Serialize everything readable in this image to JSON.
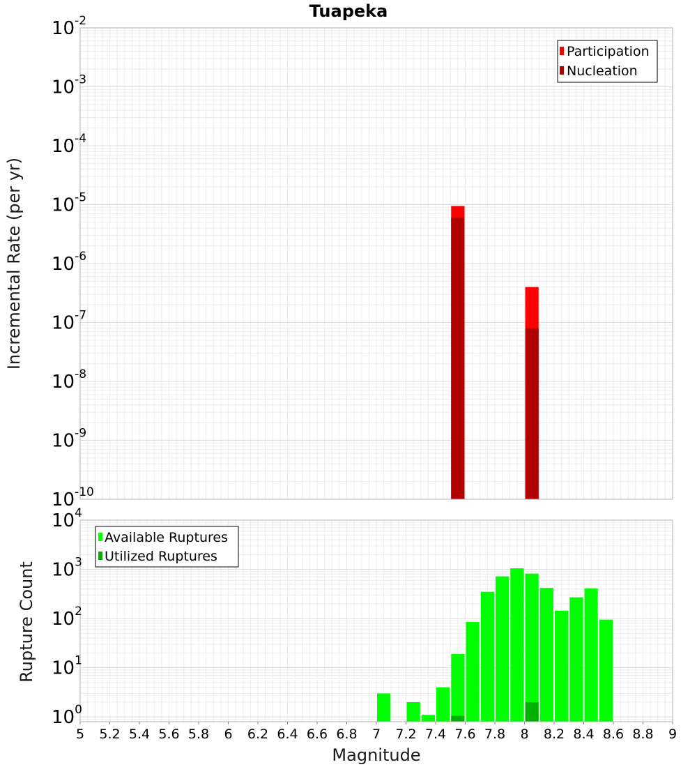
{
  "chart_data": [
    {
      "type": "bar",
      "title": "Tuapeka",
      "xlabel": "",
      "ylabel": "Incremental Rate (per yr)",
      "yscale": "log",
      "ylim": [
        1e-10,
        0.01
      ],
      "xlim": [
        5,
        9
      ],
      "bin_width": 0.1,
      "ytick_labels": [
        {
          "base": "10",
          "exp": "-2"
        },
        {
          "base": "10",
          "exp": "-3"
        },
        {
          "base": "10",
          "exp": "-4"
        },
        {
          "base": "10",
          "exp": "-5"
        },
        {
          "base": "10",
          "exp": "-6"
        },
        {
          "base": "10",
          "exp": "-7"
        },
        {
          "base": "10",
          "exp": "-8"
        },
        {
          "base": "10",
          "exp": "-9"
        },
        {
          "base": "10",
          "exp": "-10"
        }
      ],
      "legend_position": "top-right",
      "grid": true,
      "series": [
        {
          "name": "Participation",
          "color": "#ff0000",
          "x": [
            7.55,
            8.05
          ],
          "values": [
            9.5e-06,
            4e-07
          ]
        },
        {
          "name": "Nucleation",
          "color": "#b00000",
          "x": [
            7.55,
            8.05
          ],
          "values": [
            6e-06,
            8e-08
          ]
        }
      ]
    },
    {
      "type": "bar",
      "title": "",
      "xlabel": "Magnitude",
      "ylabel": "Rupture Count",
      "yscale": "log",
      "ylim": [
        0.8,
        10000
      ],
      "xlim": [
        5,
        9
      ],
      "bin_width": 0.1,
      "xtick_labels": [
        "5",
        "5.2",
        "5.4",
        "5.6",
        "5.8",
        "6",
        "6.2",
        "6.4",
        "6.6",
        "6.8",
        "7",
        "7.2",
        "7.4",
        "7.6",
        "7.8",
        "8",
        "8.2",
        "8.4",
        "8.6",
        "8.8",
        "9"
      ],
      "ytick_labels": [
        {
          "base": "10",
          "exp": "4"
        },
        {
          "base": "10",
          "exp": "3"
        },
        {
          "base": "10",
          "exp": "2"
        },
        {
          "base": "10",
          "exp": "1"
        },
        {
          "base": "10",
          "exp": "0"
        }
      ],
      "legend_position": "top-left",
      "grid": true,
      "series": [
        {
          "name": "Available Ruptures",
          "color": "#00ff00",
          "x": [
            7.05,
            7.25,
            7.35,
            7.45,
            7.55,
            7.65,
            7.75,
            7.85,
            7.95,
            8.05,
            8.15,
            8.25,
            8.35,
            8.45,
            8.55
          ],
          "values": [
            3,
            2,
            1.1,
            4,
            19,
            85,
            350,
            720,
            1050,
            820,
            420,
            145,
            270,
            410,
            95
          ]
        },
        {
          "name": "Utilized Ruptures",
          "color": "#00b000",
          "x": [
            7.55,
            8.05
          ],
          "values": [
            1.05,
            2
          ]
        }
      ]
    }
  ]
}
